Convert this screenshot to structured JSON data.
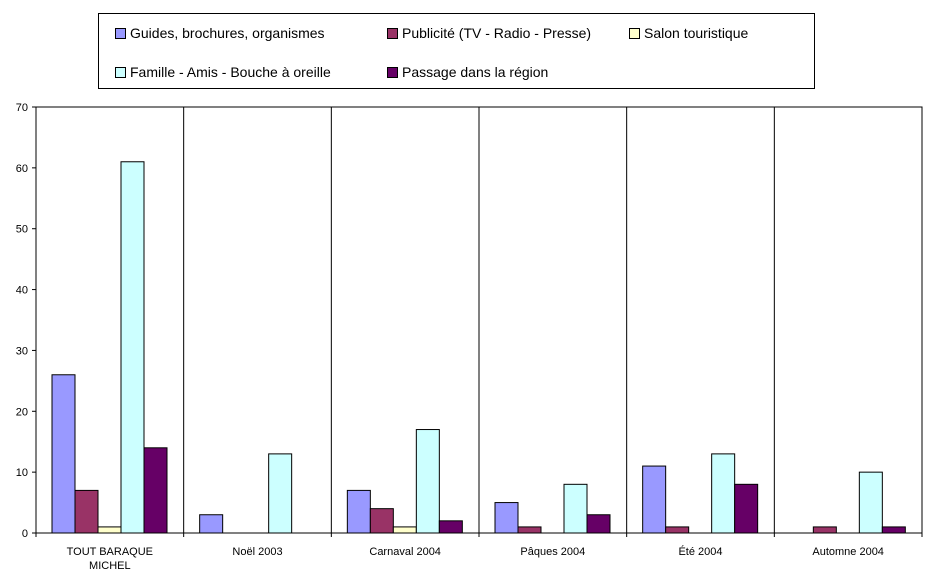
{
  "chart_data": {
    "type": "bar",
    "title": "",
    "xlabel": "",
    "ylabel": "",
    "ylim": [
      0,
      70
    ],
    "yticks": [
      0,
      10,
      20,
      30,
      40,
      50,
      60,
      70
    ],
    "grid": "vertical-category-separators",
    "legend_position": "top",
    "categories": [
      "TOUT BARAQUE MICHEL",
      "Noël 2003",
      "Carnaval 2004",
      "Pâques 2004",
      "Été 2004",
      "Automne 2004"
    ],
    "series": [
      {
        "name": "Guides, brochures, organismes",
        "color": "#9999ff",
        "values": [
          26,
          3,
          7,
          5,
          11,
          0
        ]
      },
      {
        "name": "Publicité (TV - Radio - Presse)",
        "color": "#993366",
        "values": [
          7,
          0,
          4,
          1,
          1,
          1
        ]
      },
      {
        "name": "Salon touristique",
        "color": "#ffffcc",
        "values": [
          1,
          0,
          1,
          0,
          0,
          0
        ]
      },
      {
        "name": "Famille - Amis - Bouche à oreille",
        "color": "#ccffff",
        "values": [
          61,
          13,
          17,
          8,
          13,
          10
        ]
      },
      {
        "name": "Passage dans la région",
        "color": "#660066",
        "values": [
          14,
          0,
          2,
          3,
          8,
          1
        ]
      }
    ]
  }
}
